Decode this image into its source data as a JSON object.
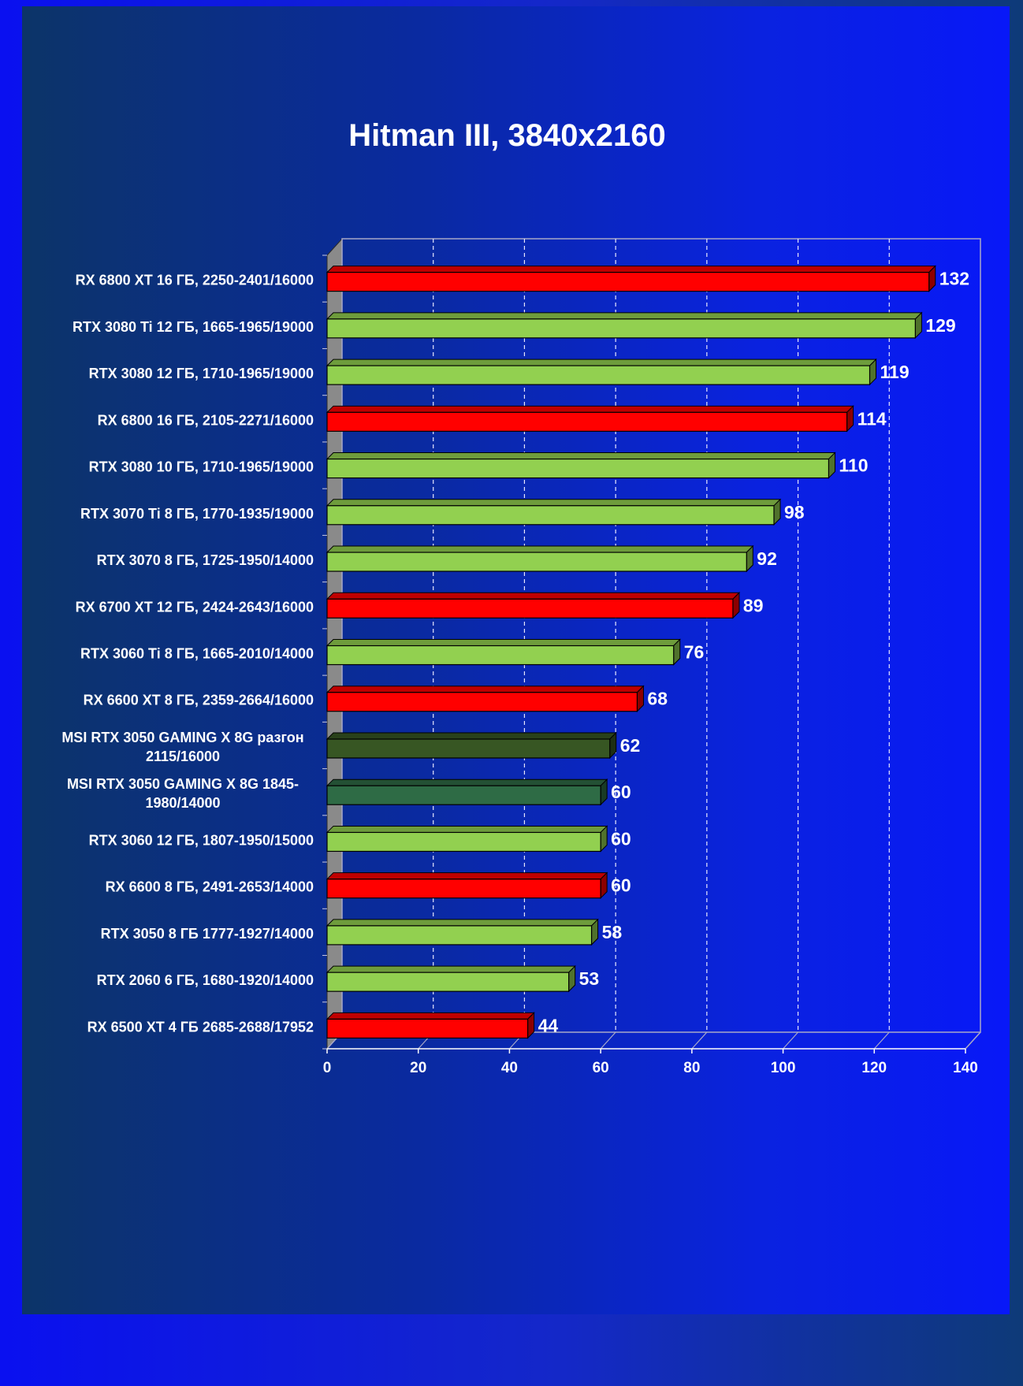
{
  "chart_data": {
    "type": "bar",
    "orientation": "horizontal",
    "title": "Hitman III, 3840x2160",
    "categories": [
      "RX 6800 XT 16 ГБ, 2250-2401/16000",
      "RTX 3080 Ti 12 ГБ, 1665-1965/19000",
      "RTX 3080 12 ГБ, 1710-1965/19000",
      "RX 6800 16 ГБ, 2105-2271/16000",
      "RTX 3080 10 ГБ, 1710-1965/19000",
      "RTX 3070 Ti 8 ГБ, 1770-1935/19000",
      "RTX 3070 8 ГБ, 1725-1950/14000",
      "RX 6700 XT 12 ГБ, 2424-2643/16000",
      "RTX 3060 Ti 8 ГБ, 1665-2010/14000",
      "RX 6600 XT 8 ГБ, 2359-2664/16000",
      "MSI  RTX 3050 GAMING  X 8G разгон 2115/16000",
      "MSI  RTX 3050 GAMING X 8G 1845-1980/14000",
      "RTX 3060 12 ГБ, 1807-1950/15000",
      "RX 6600 8 ГБ, 2491-2653/14000",
      "RTX 3050 8 ГБ 1777-1927/14000",
      "RTX 2060 6 ГБ, 1680-1920/14000",
      "RX 6500 XT 4 ГБ 2685-2688/17952"
    ],
    "label_lines": [
      [
        "RX 6800 XT 16 ГБ, 2250-2401/16000"
      ],
      [
        "RTX 3080 Ti 12 ГБ, 1665-1965/19000"
      ],
      [
        "RTX 3080 12 ГБ, 1710-1965/19000"
      ],
      [
        "RX 6800 16 ГБ, 2105-2271/16000"
      ],
      [
        "RTX 3080 10 ГБ, 1710-1965/19000"
      ],
      [
        "RTX 3070 Ti 8 ГБ, 1770-1935/19000"
      ],
      [
        "RTX 3070 8 ГБ, 1725-1950/14000"
      ],
      [
        "RX 6700 XT 12 ГБ, 2424-2643/16000"
      ],
      [
        "RTX 3060 Ti 8 ГБ, 1665-2010/14000"
      ],
      [
        "RX 6600 XT 8 ГБ, 2359-2664/16000"
      ],
      [
        "MSI  RTX 3050 GAMING  X 8G разгон",
        "2115/16000"
      ],
      [
        "MSI  RTX 3050 GAMING X 8G 1845-",
        "1980/14000"
      ],
      [
        "RTX 3060 12 ГБ, 1807-1950/15000"
      ],
      [
        "RX 6600 8 ГБ, 2491-2653/14000"
      ],
      [
        "RTX 3050 8 ГБ 1777-1927/14000"
      ],
      [
        "RTX 2060 6 ГБ, 1680-1920/14000"
      ],
      [
        "RX 6500 XT 4 ГБ 2685-2688/17952"
      ]
    ],
    "values": [
      132,
      129,
      119,
      114,
      110,
      98,
      92,
      89,
      76,
      68,
      62,
      60,
      60,
      60,
      58,
      53,
      44
    ],
    "colors": [
      "#ff0000",
      "#92d050",
      "#92d050",
      "#ff0000",
      "#92d050",
      "#92d050",
      "#92d050",
      "#ff0000",
      "#92d050",
      "#ff0000",
      "#375623",
      "#2e6b45",
      "#92d050",
      "#ff0000",
      "#92d050",
      "#92d050",
      "#ff0000"
    ],
    "xlim": [
      0,
      140
    ],
    "xticks": [
      0,
      20,
      40,
      60,
      80,
      100,
      120,
      140
    ],
    "grid": true,
    "legend": "none"
  }
}
